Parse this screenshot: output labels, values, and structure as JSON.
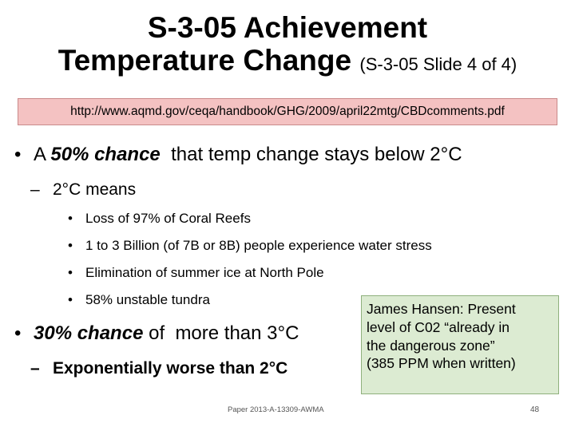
{
  "title": {
    "line1": "S-3-05 Achievement",
    "line2_main": "Temperature Change",
    "line2_sub": "(S-3-05 Slide 4 of 4)"
  },
  "url": "http://www.aqmd.gov/ceqa/handbook/GHG/2009/april22mtg/CBDcomments.pdf",
  "bullet1": {
    "marker": "•",
    "prefix": "A ",
    "emph": "50% chance",
    "rest": "  that temp change stays below 2°C"
  },
  "sub1": {
    "marker": "–",
    "text": "2°C means"
  },
  "subsub": {
    "marker": "•",
    "items": [
      "Loss of 97% of Coral Reefs",
      "1 to 3 Billion (of 7B or 8B) people experience water stress",
      "Elimination of summer ice at North Pole",
      "58% unstable tundra"
    ]
  },
  "bullet2": {
    "marker": "•",
    "emph": "30% chance",
    "rest": " of  more than 3°C"
  },
  "sub2": {
    "marker": "–",
    "text": "Exponentially worse than 2°C"
  },
  "callout": {
    "lines": [
      "James Hansen: Present",
      "level of C02 “already in",
      "the dangerous zone”",
      "(385 PPM when written)"
    ]
  },
  "footer": "Paper 2013-A-13309-AWMA",
  "page_number": "48",
  "colors": {
    "url_box_bg": "#f4c2c2",
    "callout_bg": "#dcebd2"
  }
}
